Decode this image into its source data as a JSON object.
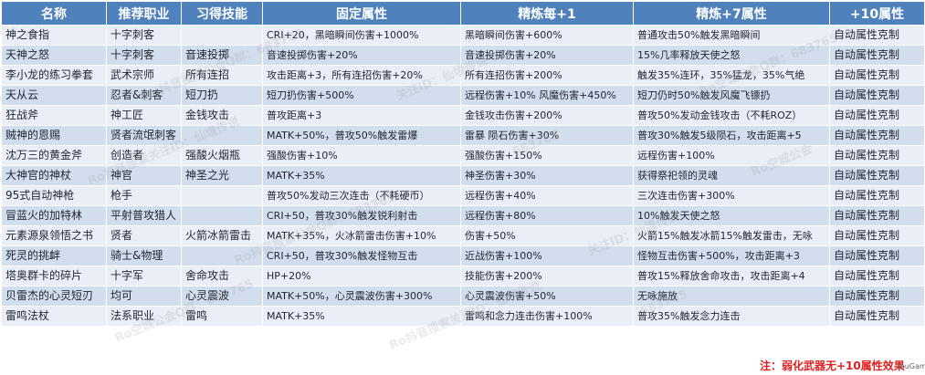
{
  "headers": [
    "名称",
    "推荐职业",
    "习得技能",
    "固定属性",
    "精炼每+1",
    "精炼+7属性",
    "+10属性"
  ],
  "rows": [
    [
      "神之食指",
      "十字刺客",
      "",
      "CRI+20，黑暗瞬间伤害+1000%",
      "黑暗瞬间伤害+600%",
      "普通攻击50%触发黑暗瞬间",
      "自动属性克制"
    ],
    [
      "天神之怒",
      "十字刺客",
      "音速投掷",
      "音速投掷伤害+20%",
      "音速投掷伤害+20%",
      "15%几率释放天使之怒",
      "自动属性克制"
    ],
    [
      "李小龙的练习拳套",
      "武术宗师",
      "所有连招",
      "攻击距离+3，所有连招伤害+20%",
      "所有连招伤害+200%",
      "触发35%连环，35%猛龙，35%气绝",
      "自动属性克制"
    ],
    [
      "天从云",
      "忍者&刺客",
      "短刀扔",
      "短刀扔伤害+500%",
      "远程伤害+10% 风魔伤害+450%",
      "短刀仍时50%触发风魔飞镖扔",
      "自动属性克制"
    ],
    [
      "狂战斧",
      "神工匠",
      "金钱攻击",
      "普攻距离+3",
      "金钱攻击伤害+200%",
      "普攻50%发动金钱攻击（不耗ROZ）",
      "自动属性克制"
    ],
    [
      "贼神的恩赐",
      "贤者流氓刺客",
      "",
      "MATK+50%，普攻50%触发雷爆",
      "雷暴 陨石伤害+30%",
      "普攻30%触发5级陨石，攻击距离+5",
      "自动属性克制"
    ],
    [
      "沈万三的黄金斧",
      "创造者",
      "强酸火烟瓶",
      "强酸伤害+10%",
      "强酸伤害+150%",
      "远程伤害+100%",
      "自动属性克制"
    ],
    [
      "大神官的神杖",
      "神官",
      "神圣之光",
      "MATK+35%",
      "神圣伤害+30%",
      "获得祭祀领的灵魂",
      "自动属性克制"
    ],
    [
      "95式自动神枪",
      "枪手",
      "",
      "普攻50%发动三次连击（不耗硬币）",
      "远程伤害+40%",
      "三次连击伤害+300%",
      "自动属性克制"
    ],
    [
      "冒蓝火的加特林",
      "平射普攻猎人",
      "",
      "CRI+50，普攻30%触发锐利射击",
      "远程伤害+80%",
      "10%触发天使之怒",
      "自动属性克制"
    ],
    [
      "元素源泉领悟之书",
      "贤者",
      "火箭冰箭雷击",
      "MATK+35%，火冰箭雷击伤害+10%",
      "伤害+50%",
      "火箭15%触发冰箭15%触发雷击，无咏",
      "自动属性克制"
    ],
    [
      "死灵的挑衅",
      "骑士&物理",
      "",
      "CRI+50，普攻30%触发怪物互击",
      "近战伤害+100%",
      "怪物互击伤害+500%，攻击距离+3",
      "自动属性克制"
    ],
    [
      "塔奥群卡的碎片",
      "十字军",
      "舍命攻击",
      "HP+20%",
      "技能伤害+200%",
      "普攻15%释放舍命攻击，攻击距离+4",
      "自动属性克制"
    ],
    [
      "贝雷杰的心灵短刃",
      "均可",
      "心灵震波",
      "MATK+50%，心灵震波伤害+300%",
      "心灵震波伤害+50%",
      "无咏施放",
      "自动属性克制"
    ],
    [
      "雷鸣法杖",
      "法系职业",
      "雷鸣",
      "MATK+35%",
      "雷鸣和念力连击伤害+100%",
      "普攻35%触发念力连击",
      "自动属性克制"
    ]
  ],
  "note": "注：弱化武器无+10属性效果",
  "brand": "YouGame",
  "watermarks": [
    "Ro抖音搜索公会Q群：683765",
    "关注ID：仙境传说",
    "Ro空城公会Q群：683765",
    "Ro抖音搜索关注ID：仙境传说",
    "683765",
    "Ro空城公会"
  ]
}
